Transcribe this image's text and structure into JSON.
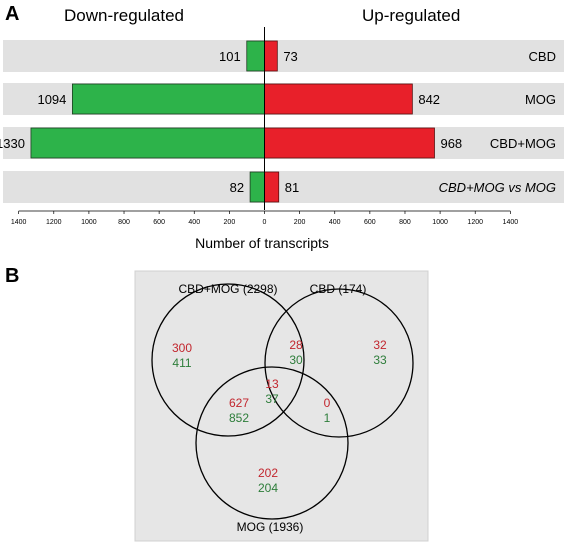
{
  "panel_a": {
    "letter": "A",
    "left_header": "Down-regulated",
    "right_header": "Up-regulated"
  },
  "panel_b": {
    "letter": "B"
  },
  "colors": {
    "down": "#2db34a",
    "up": "#e8202a",
    "row_bg": "#e1e1e1",
    "venn_bg": "#e6e6e6",
    "venn_red_text": "#c2262e",
    "venn_green_text": "#2d7d3a"
  },
  "chart_data": [
    {
      "type": "bar",
      "orientation": "horizontal-diverging",
      "categories": [
        "CBD",
        "MOG",
        "CBD+MOG",
        "CBD+MOG vs MOG"
      ],
      "series": [
        {
          "name": "Down-regulated",
          "values": [
            101,
            1094,
            1330,
            82
          ]
        },
        {
          "name": "Up-regulated",
          "values": [
            73,
            842,
            968,
            81
          ]
        }
      ],
      "xlabel": "Number of transcripts",
      "x_ticks": [
        1400,
        1200,
        1000,
        800,
        600,
        400,
        200,
        0,
        200,
        400,
        600,
        800,
        1000,
        1200,
        1400
      ],
      "xlim": [
        -1400,
        1400
      ]
    },
    {
      "type": "venn",
      "sets": [
        {
          "id": "cbdmog",
          "label": "CBD+MOG (2298)"
        },
        {
          "id": "cbd",
          "label": "CBD (174)"
        },
        {
          "id": "mog",
          "label": "MOG (1936)"
        }
      ],
      "regions": [
        {
          "sets": [
            "cbdmog"
          ],
          "up": "300",
          "down": "411"
        },
        {
          "sets": [
            "cbdmog",
            "cbd"
          ],
          "up": "28",
          "down": "30"
        },
        {
          "sets": [
            "cbd"
          ],
          "up": "32",
          "down": "33"
        },
        {
          "sets": [
            "cbdmog",
            "cbd",
            "mog"
          ],
          "up": "13",
          "down": "37"
        },
        {
          "sets": [
            "cbdmog",
            "mog"
          ],
          "up": "627",
          "down": "852"
        },
        {
          "sets": [
            "cbd",
            "mog"
          ],
          "up": "0",
          "down": "1"
        },
        {
          "sets": [
            "mog"
          ],
          "up": "202",
          "down": "204"
        }
      ]
    }
  ]
}
